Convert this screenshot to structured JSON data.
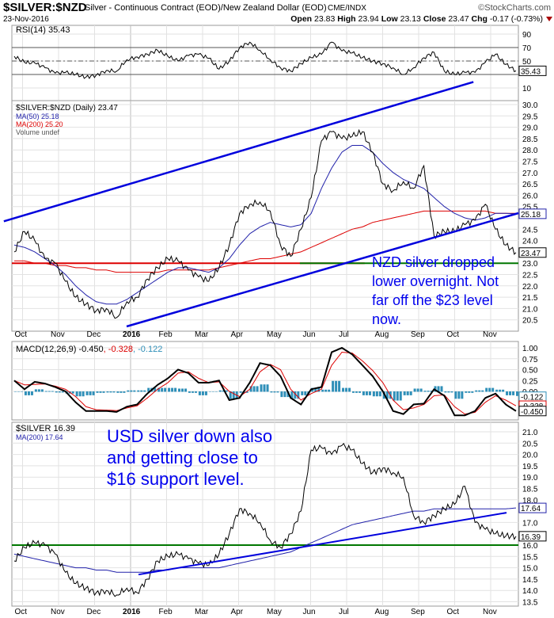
{
  "header": {
    "symbol": "$SILVER:$NZD",
    "description": "Silver - Continuous Contract (EOD)/New Zealand Dollar (EOD)",
    "exchange": "CME/INDX",
    "brand": "©StockCharts.com",
    "date": "23-Nov-2016",
    "open_label": "Open",
    "open": "23.83",
    "high_label": "High",
    "high": "23.94",
    "low_label": "Low",
    "low": "23.13",
    "close_label": "Close",
    "close": "23.47",
    "chg_label": "Chg",
    "chg": "-0.17 (-0.73%)"
  },
  "colors": {
    "trend": "#0000dd",
    "support": "#007700",
    "red": "#dd0000",
    "ma50": "#2222aa",
    "hist": "#2f8fb8",
    "annotation": "#0000ee"
  },
  "chart_data": [
    {
      "type": "line",
      "panel": "rsi",
      "title": "RSI(14) 35.43",
      "ylim": [
        0,
        100
      ],
      "ticks": [
        "90",
        "70",
        "50",
        "10"
      ],
      "levels": [
        70,
        50,
        30
      ],
      "last_label": "35.43",
      "series": [
        {
          "name": "RSI(14)",
          "values": [
            57,
            48,
            47,
            40,
            32,
            33,
            30,
            26,
            29,
            36,
            35,
            52,
            56,
            60,
            66,
            57,
            50,
            58,
            60,
            54,
            38,
            50,
            70,
            78,
            66,
            52,
            40,
            35,
            46,
            55,
            60,
            78,
            65,
            62,
            55,
            50,
            46,
            40,
            30,
            40,
            55,
            63,
            35,
            30,
            33,
            33,
            48,
            60,
            45,
            35.43
          ]
        }
      ]
    },
    {
      "type": "line",
      "panel": "price-nzd",
      "title": "$SILVER:$NZD (Daily) 23.47",
      "ylim": [
        20.5,
        30.0
      ],
      "legend": [
        "MA(50) 25.18",
        "MA(200) 25.20",
        "Volume undef"
      ],
      "ticks": [
        "30.0",
        "29.5",
        "29.0",
        "28.5",
        "28.0",
        "27.5",
        "27.0",
        "26.5",
        "26.0",
        "25.5",
        "24.5",
        "24.0",
        "23.0",
        "22.5",
        "22.0",
        "21.5",
        "21.0",
        "20.5"
      ],
      "last_labels": [
        "25.18",
        "23.47"
      ],
      "series": [
        {
          "name": "$SILVER:$NZD",
          "values": [
            23.5,
            24.4,
            24.0,
            23.2,
            23.0,
            22.2,
            21.5,
            21.2,
            20.9,
            21.0,
            20.6,
            21.3,
            21.5,
            22.3,
            22.8,
            23.2,
            23.1,
            22.7,
            22.4,
            22.2,
            22.8,
            23.8,
            25.2,
            25.6,
            25.7,
            25.3,
            23.8,
            23.3,
            24.5,
            25.9,
            28.4,
            28.8,
            28.5,
            28.6,
            28.8,
            27.9,
            26.5,
            26.2,
            26.6,
            26.3,
            27.3,
            24.2,
            24.4,
            24.4,
            24.7,
            24.9,
            25.6,
            24.5,
            23.8,
            23.47
          ]
        },
        {
          "name": "MA(50)",
          "values": [
            23.8,
            23.7,
            23.5,
            23.2,
            22.9,
            22.5,
            22.0,
            21.6,
            21.3,
            21.2,
            21.2,
            21.4,
            21.7,
            22.0,
            22.3,
            22.6,
            22.8,
            22.8,
            22.7,
            22.6,
            22.8,
            23.2,
            23.8,
            24.3,
            24.6,
            24.8,
            24.7,
            24.6,
            24.7,
            25.2,
            26.3,
            27.2,
            27.9,
            28.2,
            28.2,
            27.9,
            27.4,
            27.0,
            26.7,
            26.5,
            26.3,
            25.9,
            25.5,
            25.2,
            25.0,
            24.9,
            25.0,
            25.2,
            25.2,
            25.18
          ]
        },
        {
          "name": "MA(200)",
          "values": [
            23.1,
            23.1,
            23.0,
            23.0,
            22.9,
            22.9,
            22.8,
            22.8,
            22.7,
            22.7,
            22.6,
            22.6,
            22.6,
            22.6,
            22.6,
            22.7,
            22.7,
            22.7,
            22.7,
            22.7,
            22.8,
            22.9,
            23.0,
            23.1,
            23.2,
            23.2,
            23.3,
            23.4,
            23.5,
            23.7,
            23.9,
            24.1,
            24.3,
            24.5,
            24.6,
            24.8,
            24.9,
            25.0,
            25.1,
            25.2,
            25.3,
            25.3,
            25.3,
            25.3,
            25.3,
            25.3,
            25.3,
            25.2,
            25.2,
            25.2
          ]
        }
      ],
      "trendlines": [
        {
          "name": "upper-channel",
          "points": [
            [
              -0.52,
              24.85
            ],
            [
              12.52,
              31.0
            ]
          ]
        },
        {
          "name": "lower-channel",
          "points": [
            [
              2.89,
              20.21
            ],
            [
              13.77,
              25.21
            ]
          ]
        }
      ],
      "horizontal": [
        {
          "name": "red-level",
          "value": 23.0,
          "from": -0.3,
          "to": 9.5
        },
        {
          "name": "green-support",
          "value": 23.0,
          "from": 7.7,
          "to": 13.77
        }
      ],
      "annotation": [
        "NZD silver dropped",
        "lower overnight. Not",
        "far off the $23 level",
        "now."
      ]
    },
    {
      "type": "line",
      "panel": "macd",
      "title": "MACD(12,26,9) -0.450",
      "signal_label": "-0.328",
      "hist_label": "-0.122",
      "ylim": [
        -0.5,
        1.1
      ],
      "ticks": [
        "1.00",
        "0.75",
        "0.50",
        "0.25",
        "0.00"
      ],
      "last_labels": [
        "-0.122",
        "-0.328",
        "-0.450"
      ],
      "series": [
        {
          "name": "MACD",
          "values": [
            0.25,
            0.05,
            0.22,
            0.18,
            0.1,
            0.0,
            -0.25,
            -0.45,
            -0.45,
            -0.45,
            -0.47,
            -0.35,
            -0.3,
            -0.05,
            0.15,
            0.3,
            0.5,
            0.42,
            0.2,
            0.2,
            0.25,
            -0.2,
            -0.15,
            0.2,
            0.65,
            0.6,
            0.35,
            -0.15,
            -0.3,
            0.05,
            0.1,
            0.9,
            1.0,
            0.85,
            0.6,
            0.35,
            0.0,
            -0.45,
            -0.52,
            -0.3,
            -0.28,
            0.05,
            -0.1,
            -0.55,
            -0.55,
            -0.45,
            -0.15,
            -0.05,
            -0.3,
            -0.45
          ]
        },
        {
          "name": "Signal",
          "values": [
            0.25,
            0.15,
            0.16,
            0.17,
            0.12,
            0.05,
            -0.12,
            -0.35,
            -0.42,
            -0.43,
            -0.44,
            -0.38,
            -0.33,
            -0.15,
            0.05,
            0.2,
            0.42,
            0.45,
            0.3,
            0.2,
            0.22,
            0.0,
            -0.12,
            0.05,
            0.45,
            0.62,
            0.5,
            0.05,
            -0.2,
            -0.05,
            0.05,
            0.6,
            0.9,
            0.88,
            0.7,
            0.48,
            0.2,
            -0.2,
            -0.42,
            -0.38,
            -0.3,
            -0.1,
            -0.08,
            -0.35,
            -0.52,
            -0.48,
            -0.25,
            -0.1,
            -0.2,
            -0.33
          ]
        }
      ],
      "histogram_from": "MACD minus Signal"
    },
    {
      "type": "line",
      "panel": "price-usd",
      "title": "$SILVER 16.39",
      "legend": [
        "MA(200) 17.64"
      ],
      "ylim": [
        13.5,
        21.0
      ],
      "ticks": [
        "21.0",
        "20.5",
        "20.0",
        "19.5",
        "19.0",
        "18.5",
        "18.0",
        "17.0",
        "16.0",
        "15.5",
        "15.0",
        "14.5",
        "14.0",
        "13.5"
      ],
      "last_labels": [
        "17.64",
        "16.39"
      ],
      "series": [
        {
          "name": "$SILVER",
          "values": [
            15.3,
            15.9,
            16.1,
            16.0,
            15.6,
            14.8,
            14.3,
            14.1,
            13.9,
            14.0,
            13.8,
            14.1,
            13.9,
            14.5,
            15.3,
            15.5,
            15.6,
            15.4,
            15.2,
            15.1,
            15.6,
            16.5,
            17.6,
            17.4,
            17.0,
            16.2,
            15.9,
            16.5,
            17.5,
            20.2,
            20.3,
            20.0,
            20.4,
            20.2,
            19.6,
            19.2,
            19.4,
            19.2,
            19.0,
            17.3,
            17.0,
            17.3,
            17.6,
            17.8,
            18.6,
            17.0,
            16.7,
            16.5,
            16.4,
            16.39
          ]
        },
        {
          "name": "MA(200)",
          "values": [
            15.6,
            15.5,
            15.4,
            15.3,
            15.2,
            15.1,
            15.0,
            15.0,
            14.9,
            14.9,
            14.8,
            14.8,
            14.8,
            14.8,
            14.9,
            14.9,
            15.0,
            15.0,
            15.0,
            15.0,
            15.0,
            15.1,
            15.2,
            15.3,
            15.4,
            15.5,
            15.6,
            15.7,
            15.9,
            16.1,
            16.3,
            16.5,
            16.7,
            16.9,
            17.0,
            17.1,
            17.2,
            17.3,
            17.4,
            17.5,
            17.5,
            17.6,
            17.6,
            17.6,
            17.6,
            17.6,
            17.6,
            17.6,
            17.6,
            17.64
          ]
        }
      ],
      "trendlines": [
        {
          "name": "uptrend",
          "points": [
            [
              3.22,
              14.7
            ],
            [
              13.44,
              17.43
            ]
          ]
        }
      ],
      "horizontal": [
        {
          "name": "green-support",
          "value": 16.0,
          "from": -0.3,
          "to": 13.77
        }
      ],
      "annotation": [
        "USD silver down also",
        "and getting close to",
        "$16 support level."
      ]
    }
  ],
  "x_axis": {
    "labels": [
      "Oct",
      "Nov",
      "Dec",
      "2016",
      "Feb",
      "Mar",
      "Apr",
      "May",
      "Jun",
      "Jul",
      "Aug",
      "Sep",
      "Oct",
      "Nov"
    ]
  }
}
